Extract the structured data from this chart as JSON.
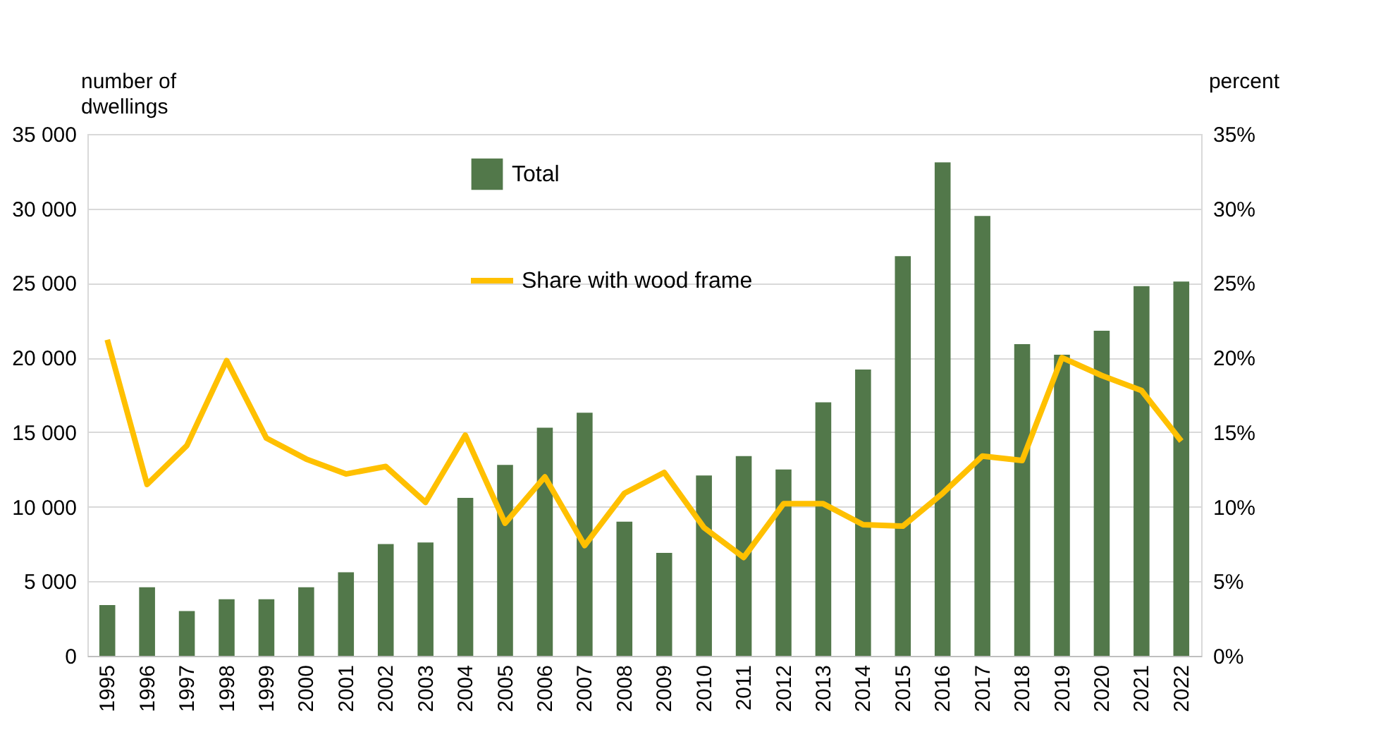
{
  "chart_data": {
    "type": "bar",
    "ylabel": "number of dwellings",
    "y2label": "percent",
    "categories": [
      "1995",
      "1996",
      "1997",
      "1998",
      "1999",
      "2000",
      "2001",
      "2002",
      "2003",
      "2004",
      "2005",
      "2006",
      "2007",
      "2008",
      "2009",
      "2010",
      "2011",
      "2012",
      "2013",
      "2014",
      "2015",
      "2016",
      "2017",
      "2018",
      "2019",
      "2020",
      "2021",
      "2022"
    ],
    "series": [
      {
        "name": "Total",
        "color": "#52784a",
        "values": [
          3400,
          4600,
          3000,
          3800,
          3800,
          4600,
          5600,
          7500,
          7600,
          10600,
          12800,
          15300,
          16300,
          9000,
          6900,
          12100,
          13400,
          12500,
          17000,
          19200,
          26800,
          33100,
          29500,
          20900,
          20200,
          21800,
          24800,
          25100
        ]
      },
      {
        "name": "Share with wood frame",
        "type": "line",
        "axis": "y2",
        "color": "#ffc000",
        "values": [
          21.2,
          11.5,
          14.1,
          19.8,
          14.6,
          13.2,
          12.2,
          12.7,
          10.3,
          14.8,
          8.9,
          12.0,
          7.4,
          10.9,
          12.3,
          8.6,
          6.6,
          10.2,
          10.2,
          8.8,
          8.7,
          10.9,
          13.4,
          13.1,
          20.0,
          18.8,
          17.8,
          14.4
        ]
      }
    ],
    "ylim": [
      0,
      35000
    ],
    "yticks": [
      {
        "value": 0,
        "label": "0"
      },
      {
        "value": 5000,
        "label": "5 000"
      },
      {
        "value": 10000,
        "label": "10 000"
      },
      {
        "value": 15000,
        "label": "15 000"
      },
      {
        "value": 20000,
        "label": "20 000"
      },
      {
        "value": 25000,
        "label": "25 000"
      },
      {
        "value": 30000,
        "label": "30 000"
      },
      {
        "value": 35000,
        "label": "35 000"
      }
    ],
    "y2lim": [
      0,
      35
    ],
    "y2ticks": [
      {
        "value": 0,
        "label": "0%"
      },
      {
        "value": 5,
        "label": "5%"
      },
      {
        "value": 10,
        "label": "10%"
      },
      {
        "value": 15,
        "label": "15%"
      },
      {
        "value": 20,
        "label": "20%"
      },
      {
        "value": 25,
        "label": "25%"
      },
      {
        "value": 30,
        "label": "30%"
      },
      {
        "value": 35,
        "label": "35%"
      }
    ],
    "grid": "y",
    "legend": "top",
    "marker": "none",
    "line_style": "solid"
  }
}
